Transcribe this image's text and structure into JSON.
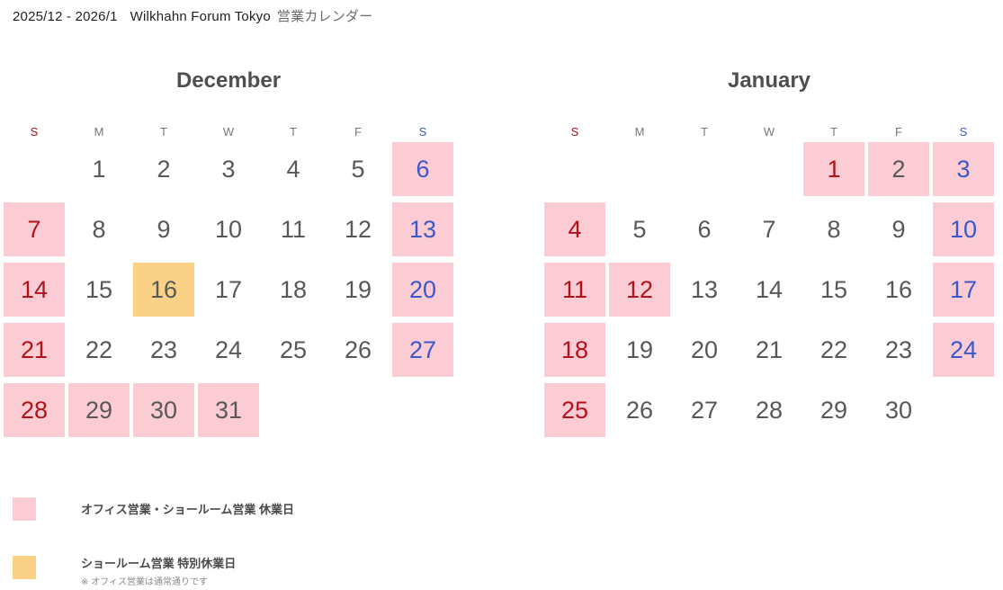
{
  "title": {
    "date_range": "2025/12 - 2026/1",
    "site": "Wilkhahn Forum Tokyo",
    "suffix": "営業カレンダー"
  },
  "colors": {
    "closed_bg": "#fbccd3",
    "special_bg": "#f9d187",
    "sunday_red": "#b3121a",
    "saturday_blue": "#3b57c9",
    "day_gray": "#58585a",
    "weekday_gray": "#777777",
    "title_dark": "#1f1f1f",
    "title_gray": "#6b6b6b"
  },
  "weekday_headers": [
    {
      "label": "S",
      "color": "red"
    },
    {
      "label": "M",
      "color": "gray"
    },
    {
      "label": "T",
      "color": "gray"
    },
    {
      "label": "W",
      "color": "gray"
    },
    {
      "label": "T",
      "color": "gray"
    },
    {
      "label": "F",
      "color": "gray"
    },
    {
      "label": "S",
      "color": "blue"
    }
  ],
  "months": [
    {
      "name": "December",
      "weeks": [
        [
          null,
          {
            "d": 1
          },
          {
            "d": 2
          },
          {
            "d": 3
          },
          {
            "d": 4
          },
          {
            "d": 5
          },
          {
            "d": 6,
            "bg": "closed",
            "fg": "blue"
          }
        ],
        [
          {
            "d": 7,
            "bg": "closed",
            "fg": "red"
          },
          {
            "d": 8
          },
          {
            "d": 9
          },
          {
            "d": 10
          },
          {
            "d": 11
          },
          {
            "d": 12
          },
          {
            "d": 13,
            "bg": "closed",
            "fg": "blue"
          }
        ],
        [
          {
            "d": 14,
            "bg": "closed",
            "fg": "red"
          },
          {
            "d": 15
          },
          {
            "d": 16,
            "bg": "special"
          },
          {
            "d": 17
          },
          {
            "d": 18
          },
          {
            "d": 19
          },
          {
            "d": 20,
            "bg": "closed",
            "fg": "blue"
          }
        ],
        [
          {
            "d": 21,
            "bg": "closed",
            "fg": "red"
          },
          {
            "d": 22
          },
          {
            "d": 23
          },
          {
            "d": 24
          },
          {
            "d": 25
          },
          {
            "d": 26
          },
          {
            "d": 27,
            "bg": "closed",
            "fg": "blue"
          }
        ],
        [
          {
            "d": 28,
            "bg": "closed",
            "fg": "red"
          },
          {
            "d": 29,
            "bg": "closed"
          },
          {
            "d": 30,
            "bg": "closed"
          },
          {
            "d": 31,
            "bg": "closed"
          },
          null,
          null,
          null
        ]
      ]
    },
    {
      "name": "January",
      "weeks": [
        [
          null,
          null,
          null,
          null,
          {
            "d": 1,
            "bg": "closed",
            "fg": "red"
          },
          {
            "d": 2,
            "bg": "closed"
          },
          {
            "d": 3,
            "bg": "closed",
            "fg": "blue"
          }
        ],
        [
          {
            "d": 4,
            "bg": "closed",
            "fg": "red"
          },
          {
            "d": 5
          },
          {
            "d": 6
          },
          {
            "d": 7
          },
          {
            "d": 8
          },
          {
            "d": 9
          },
          {
            "d": 10,
            "bg": "closed",
            "fg": "blue"
          }
        ],
        [
          {
            "d": 11,
            "bg": "closed",
            "fg": "red"
          },
          {
            "d": 12,
            "bg": "closed",
            "fg": "red"
          },
          {
            "d": 13
          },
          {
            "d": 14
          },
          {
            "d": 15
          },
          {
            "d": 16
          },
          {
            "d": 17,
            "bg": "closed",
            "fg": "blue"
          }
        ],
        [
          {
            "d": 18,
            "bg": "closed",
            "fg": "red"
          },
          {
            "d": 19
          },
          {
            "d": 20
          },
          {
            "d": 21
          },
          {
            "d": 22
          },
          {
            "d": 23
          },
          {
            "d": 24,
            "bg": "closed",
            "fg": "blue"
          }
        ],
        [
          {
            "d": 25,
            "bg": "closed",
            "fg": "red"
          },
          {
            "d": 26
          },
          {
            "d": 27
          },
          {
            "d": 28
          },
          {
            "d": 29
          },
          {
            "d": 30
          },
          null
        ]
      ]
    }
  ],
  "legend": [
    {
      "swatch": "closed",
      "label": "オフィス営業・ショールーム営業 休業日",
      "note": ""
    },
    {
      "swatch": "special",
      "label": "ショールーム営業 特別休業日",
      "note": "※ オフィス営業は通常通りです"
    }
  ]
}
